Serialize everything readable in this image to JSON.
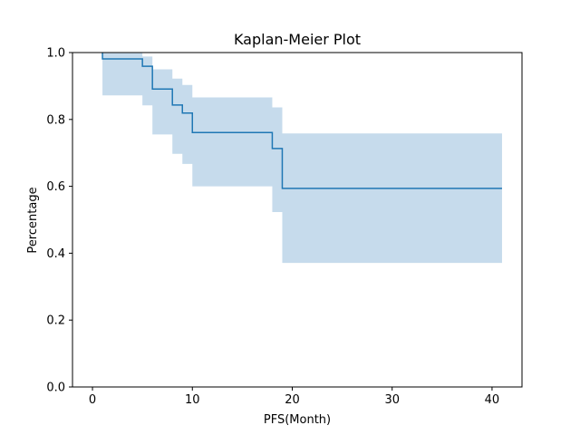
{
  "chart_data": {
    "type": "line",
    "subtype": "kaplan-meier-step",
    "title": "Kaplan-Meier Plot",
    "xlabel": "PFS(Month)",
    "ylabel": "Percentage",
    "xlim": [
      -2,
      43
    ],
    "ylim": [
      0,
      1
    ],
    "x_ticks": [
      0,
      10,
      20,
      30,
      40
    ],
    "y_ticks": [
      0.0,
      0.2,
      0.4,
      0.6,
      0.8,
      1.0
    ],
    "x_tick_labels": [
      "0",
      "10",
      "20",
      "30",
      "40"
    ],
    "y_tick_labels": [
      "0.0",
      "0.2",
      "0.4",
      "0.6",
      "0.8",
      "1.0"
    ],
    "grid": false,
    "legend": "none",
    "colors": {
      "line": "#1f77b4",
      "band": "#c6dbec"
    },
    "series": [
      {
        "x": [
          1,
          5,
          6,
          8,
          9,
          10,
          18,
          19,
          41
        ],
        "survival": [
          0.981,
          0.959,
          0.891,
          0.843,
          0.819,
          0.761,
          0.713,
          0.594,
          0.594
        ],
        "ci_lower": [
          0.872,
          0.842,
          0.755,
          0.697,
          0.667,
          0.6,
          0.523,
          0.371,
          0.371
        ],
        "ci_upper": [
          1.0,
          0.988,
          0.95,
          0.922,
          0.903,
          0.866,
          0.836,
          0.758,
          0.758
        ]
      }
    ]
  }
}
